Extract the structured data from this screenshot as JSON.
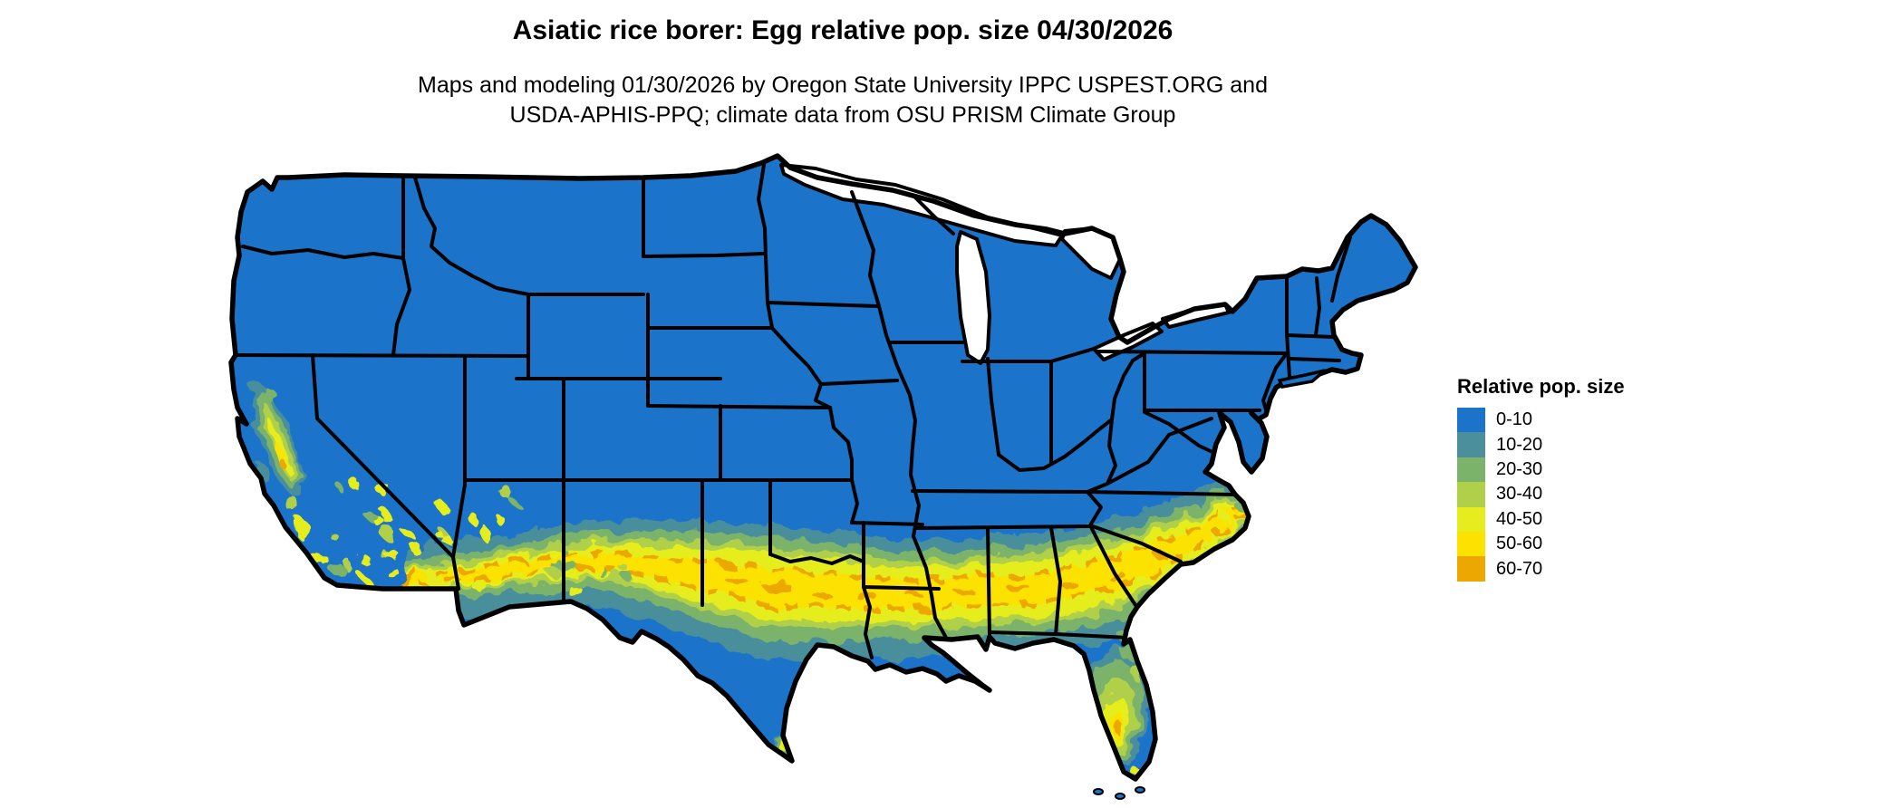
{
  "header": {
    "title": "Asiatic rice borer: Egg relative pop. size 04/30/2026",
    "subtitle_line1": "Maps and modeling 01/30/2026 by Oregon State University IPPC USPEST.ORG and",
    "subtitle_line2": "USDA-APHIS-PPQ; climate data from OSU PRISM Climate Group"
  },
  "legend": {
    "title": "Relative pop. size",
    "items": [
      {
        "range": "0-10",
        "color": "#1B74C9"
      },
      {
        "range": "10-20",
        "color": "#4A8F9B"
      },
      {
        "range": "20-30",
        "color": "#7CB36A"
      },
      {
        "range": "30-40",
        "color": "#B1D04A"
      },
      {
        "range": "40-50",
        "color": "#E6ED1E"
      },
      {
        "range": "50-60",
        "color": "#FBE200"
      },
      {
        "range": "60-70",
        "color": "#EDA800"
      }
    ]
  },
  "map": {
    "base_color": "#1B74C9",
    "border_color": "#000000",
    "water_color": "#FFFFFF",
    "background_color": "#FFFFFF"
  }
}
